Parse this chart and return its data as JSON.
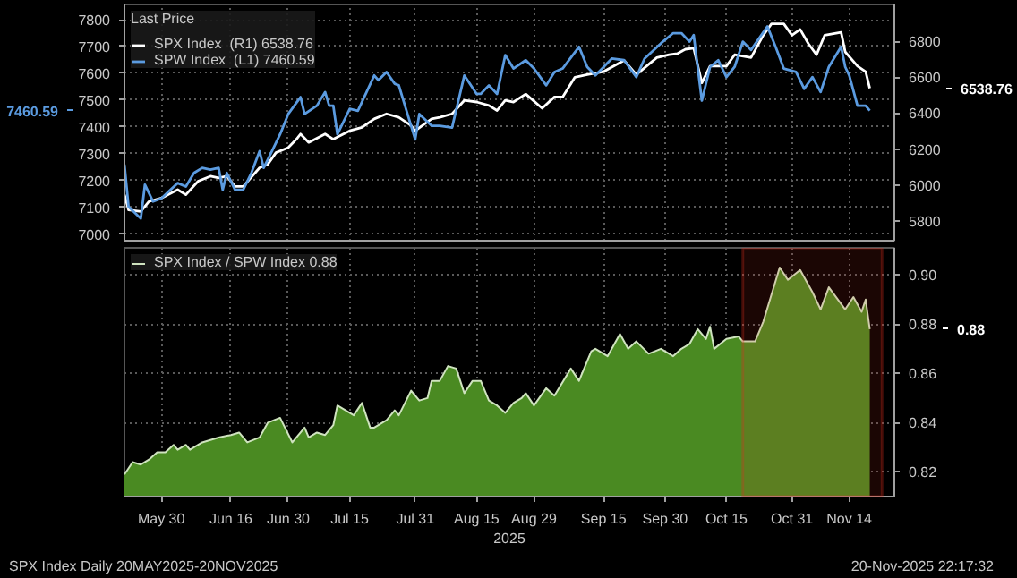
{
  "chart_data": [
    {
      "type": "line",
      "legend_title": "Last Price",
      "legend": "top left",
      "grid": true,
      "tick_labels": "y",
      "xlim": [
        "2025-05-21",
        "2025-11-25"
      ],
      "xticks": [
        {
          "value": "2025-05-30",
          "label": null
        },
        {
          "value": "2025-06-16",
          "label": null
        },
        {
          "value": "2025-06-30",
          "label": null
        },
        {
          "value": "2025-07-15",
          "label": null
        },
        {
          "value": "2025-07-31",
          "label": null
        },
        {
          "value": "2025-08-15",
          "label": null
        },
        {
          "value": "2025-08-29",
          "label": null
        },
        {
          "value": "2025-09-15",
          "label": null
        },
        {
          "value": "2025-09-30",
          "label": null
        },
        {
          "value": "2025-10-15",
          "label": null
        },
        {
          "value": "2025-10-31",
          "label": null
        },
        {
          "value": "2025-11-14",
          "label": null
        }
      ],
      "ylim": [
        6975,
        7857
      ],
      "yticks": [
        7000,
        7100,
        7200,
        7300,
        7400,
        7500,
        7600,
        7700,
        7800
      ],
      "y2lim": [
        5690,
        7005
      ],
      "y2ticks": [
        5800,
        6000,
        6200,
        6400,
        6600,
        6800
      ],
      "annotations": [
        "6538.76",
        "7460.59"
      ],
      "series": [
        {
          "name": "SPX Index  (R1) 6538.76",
          "color": "#ffffff",
          "axis": "y2",
          "x": [
            "2025-05-21",
            "2025-05-22",
            "2025-05-25",
            "2025-05-27",
            "2025-05-30",
            "2025-06-03",
            "2025-06-05",
            "2025-06-08",
            "2025-06-11",
            "2025-06-13",
            "2025-06-15",
            "2025-06-17",
            "2025-06-19",
            "2025-06-23",
            "2025-06-25",
            "2025-06-27",
            "2025-06-30",
            "2025-07-02",
            "2025-07-03",
            "2025-07-05",
            "2025-07-09",
            "2025-07-11",
            "2025-07-15",
            "2025-07-18",
            "2025-07-21",
            "2025-07-24",
            "2025-07-27",
            "2025-07-30",
            "2025-07-31",
            "2025-08-04",
            "2025-08-06",
            "2025-08-09",
            "2025-08-12",
            "2025-08-15",
            "2025-08-18",
            "2025-08-20",
            "2025-08-22",
            "2025-08-24",
            "2025-08-27",
            "2025-08-31",
            "2025-09-03",
            "2025-09-05",
            "2025-09-08",
            "2025-09-11",
            "2025-09-15",
            "2025-09-20",
            "2025-09-23",
            "2025-09-28",
            "2025-10-01",
            "2025-10-03",
            "2025-10-05",
            "2025-10-07",
            "2025-10-09",
            "2025-10-11",
            "2025-10-15",
            "2025-10-17",
            "2025-10-21",
            "2025-10-24",
            "2025-10-26",
            "2025-10-29",
            "2025-10-31",
            "2025-11-02",
            "2025-11-04",
            "2025-11-06",
            "2025-11-08",
            "2025-11-12",
            "2025-11-13",
            "2025-11-16",
            "2025-11-18",
            "2025-11-19"
          ],
          "values": [
            5946,
            5861,
            5852,
            5908,
            5927,
            5974,
            5946,
            6021,
            6049,
            6039,
            6049,
            5992,
            5992,
            6096,
            6115,
            6180,
            6208,
            6255,
            6284,
            6237,
            6284,
            6255,
            6302,
            6321,
            6368,
            6396,
            6377,
            6331,
            6302,
            6368,
            6377,
            6396,
            6471,
            6462,
            6443,
            6415,
            6471,
            6462,
            6506,
            6427,
            6490,
            6490,
            6600,
            6615,
            6631,
            6694,
            6615,
            6709,
            6725,
            6731,
            6756,
            6762,
            6568,
            6662,
            6662,
            6725,
            6709,
            6834,
            6897,
            6897,
            6834,
            6866,
            6787,
            6725,
            6834,
            6850,
            6741,
            6662,
            6631,
            6538.76
          ]
        },
        {
          "name": "SPW Index  (L1) 7460.59",
          "color": "#5b9be0",
          "x": [
            "2025-05-21",
            "2025-05-22",
            "2025-05-25",
            "2025-05-26",
            "2025-05-28",
            "2025-05-30",
            "2025-06-03",
            "2025-06-05",
            "2025-06-07",
            "2025-06-09",
            "2025-06-11",
            "2025-06-13",
            "2025-06-14",
            "2025-06-15",
            "2025-06-17",
            "2025-06-19",
            "2025-06-21",
            "2025-06-23",
            "2025-06-24",
            "2025-06-26",
            "2025-06-28",
            "2025-06-30",
            "2025-07-03",
            "2025-07-04",
            "2025-07-07",
            "2025-07-09",
            "2025-07-10",
            "2025-07-11",
            "2025-07-12",
            "2025-07-15",
            "2025-07-17",
            "2025-07-21",
            "2025-07-22",
            "2025-07-24",
            "2025-07-26",
            "2025-07-27",
            "2025-07-31",
            "2025-08-01",
            "2025-08-04",
            "2025-08-06",
            "2025-08-09",
            "2025-08-12",
            "2025-08-15",
            "2025-08-16",
            "2025-08-18",
            "2025-08-20",
            "2025-08-22",
            "2025-08-24",
            "2025-08-27",
            "2025-08-29",
            "2025-09-01",
            "2025-09-03",
            "2025-09-05",
            "2025-09-09",
            "2025-09-11",
            "2025-09-13",
            "2025-09-17",
            "2025-09-20",
            "2025-09-23",
            "2025-09-25",
            "2025-09-29",
            "2025-10-02",
            "2025-10-04",
            "2025-10-06",
            "2025-10-07",
            "2025-10-09",
            "2025-10-11",
            "2025-10-13",
            "2025-10-15",
            "2025-10-17",
            "2025-10-19",
            "2025-10-21",
            "2025-10-25",
            "2025-10-27",
            "2025-10-29",
            "2025-11-01",
            "2025-11-03",
            "2025-11-05",
            "2025-11-07",
            "2025-11-09",
            "2025-11-12",
            "2025-11-13",
            "2025-11-14",
            "2025-11-16",
            "2025-11-18",
            "2025-11-19"
          ],
          "values": [
            7259,
            7102,
            7058,
            7184,
            7121,
            7133,
            7190,
            7177,
            7228,
            7247,
            7240,
            7247,
            7165,
            7228,
            7165,
            7165,
            7228,
            7309,
            7247,
            7309,
            7372,
            7448,
            7511,
            7448,
            7479,
            7530,
            7479,
            7479,
            7372,
            7467,
            7460,
            7592,
            7574,
            7605,
            7561,
            7555,
            7353,
            7448,
            7404,
            7404,
            7397,
            7592,
            7523,
            7523,
            7555,
            7523,
            7668,
            7618,
            7649,
            7618,
            7555,
            7605,
            7618,
            7699,
            7624,
            7592,
            7655,
            7649,
            7586,
            7655,
            7712,
            7750,
            7750,
            7718,
            7743,
            7498,
            7624,
            7649,
            7586,
            7624,
            7718,
            7687,
            7775,
            7699,
            7618,
            7605,
            7542,
            7586,
            7530,
            7624,
            7699,
            7624,
            7592,
            7479,
            7479,
            7460.59
          ]
        }
      ]
    },
    {
      "type": "area",
      "legend": "top left",
      "grid": true,
      "xlabel": "2025",
      "xlim": [
        "2025-05-21",
        "2025-11-25"
      ],
      "xticks": [
        {
          "value": "2025-05-30",
          "label": "May 30"
        },
        {
          "value": "2025-06-16",
          "label": "Jun 16"
        },
        {
          "value": "2025-06-30",
          "label": "Jun 30"
        },
        {
          "value": "2025-07-15",
          "label": "Jul 15"
        },
        {
          "value": "2025-07-31",
          "label": "Jul 31"
        },
        {
          "value": "2025-08-15",
          "label": "Aug 15"
        },
        {
          "value": "2025-08-29",
          "label": "Aug 29"
        },
        {
          "value": "2025-09-15",
          "label": "Sep 15"
        },
        {
          "value": "2025-09-30",
          "label": "Sep 30"
        },
        {
          "value": "2025-10-15",
          "label": "Oct 15"
        },
        {
          "value": "2025-10-31",
          "label": "Oct 31"
        },
        {
          "value": "2025-11-14",
          "label": "Nov 14"
        }
      ],
      "ylim": [
        0.81,
        0.911
      ],
      "yticks": [
        0.82,
        0.84,
        0.86,
        0.88,
        {
          "value": 0.9,
          "label": "0.90"
        }
      ],
      "bands": [
        {
          "axis": "x",
          "from": "2025-10-19",
          "to": "2025-11-22",
          "color": "#e0301e"
        }
      ],
      "annotations": [
        "0.88",
        "SPX Index Daily 20MAY2025-20NOV2025",
        "20-Nov-2025 22:17:32"
      ],
      "series": [
        {
          "name": "SPX Index / SPW Index 0.88",
          "color": "#4a8a22",
          "x": [
            "2025-05-21",
            "2025-05-23",
            "2025-05-25",
            "2025-05-27",
            "2025-05-29",
            "2025-05-31",
            "2025-06-02",
            "2025-06-03",
            "2025-06-05",
            "2025-06-06",
            "2025-06-09",
            "2025-06-13",
            "2025-06-16",
            "2025-06-18",
            "2025-06-20",
            "2025-06-23",
            "2025-06-25",
            "2025-06-28",
            "2025-07-01",
            "2025-07-04",
            "2025-07-05",
            "2025-07-07",
            "2025-07-09",
            "2025-07-11",
            "2025-07-12",
            "2025-07-16",
            "2025-07-18",
            "2025-07-20",
            "2025-07-21",
            "2025-07-24",
            "2025-07-26",
            "2025-07-27",
            "2025-07-30",
            "2025-08-01",
            "2025-08-03",
            "2025-08-04",
            "2025-08-06",
            "2025-08-08",
            "2025-08-10",
            "2025-08-12",
            "2025-08-14",
            "2025-08-16",
            "2025-08-18",
            "2025-08-20",
            "2025-08-22",
            "2025-08-24",
            "2025-08-26",
            "2025-08-27",
            "2025-08-29",
            "2025-09-01",
            "2025-09-03",
            "2025-09-07",
            "2025-09-09",
            "2025-09-12",
            "2025-09-13",
            "2025-09-16",
            "2025-09-19",
            "2025-09-21",
            "2025-09-23",
            "2025-09-26",
            "2025-09-29",
            "2025-10-02",
            "2025-10-04",
            "2025-10-06",
            "2025-10-08",
            "2025-10-10",
            "2025-10-11",
            "2025-10-12",
            "2025-10-15",
            "2025-10-18",
            "2025-10-19",
            "2025-10-22",
            "2025-10-24",
            "2025-10-28",
            "2025-10-30",
            "2025-11-02",
            "2025-11-05",
            "2025-11-07",
            "2025-11-09",
            "2025-11-13",
            "2025-11-15",
            "2025-11-17",
            "2025-11-18",
            "2025-11-19"
          ],
          "values": [
            0.819,
            0.824,
            0.823,
            0.825,
            0.828,
            0.828,
            0.831,
            0.829,
            0.831,
            0.829,
            0.832,
            0.834,
            0.835,
            0.836,
            0.832,
            0.834,
            0.84,
            0.842,
            0.832,
            0.838,
            0.834,
            0.836,
            0.835,
            0.839,
            0.847,
            0.843,
            0.848,
            0.838,
            0.838,
            0.841,
            0.845,
            0.843,
            0.853,
            0.849,
            0.85,
            0.857,
            0.857,
            0.863,
            0.862,
            0.852,
            0.857,
            0.857,
            0.849,
            0.847,
            0.844,
            0.848,
            0.85,
            0.852,
            0.847,
            0.854,
            0.851,
            0.862,
            0.857,
            0.869,
            0.87,
            0.867,
            0.876,
            0.87,
            0.873,
            0.868,
            0.87,
            0.867,
            0.87,
            0.872,
            0.878,
            0.874,
            0.879,
            0.87,
            0.874,
            0.875,
            0.873,
            0.873,
            0.881,
            0.903,
            0.898,
            0.902,
            0.893,
            0.886,
            0.895,
            0.886,
            0.891,
            0.885,
            0.89,
            0.878
          ]
        }
      ]
    }
  ]
}
